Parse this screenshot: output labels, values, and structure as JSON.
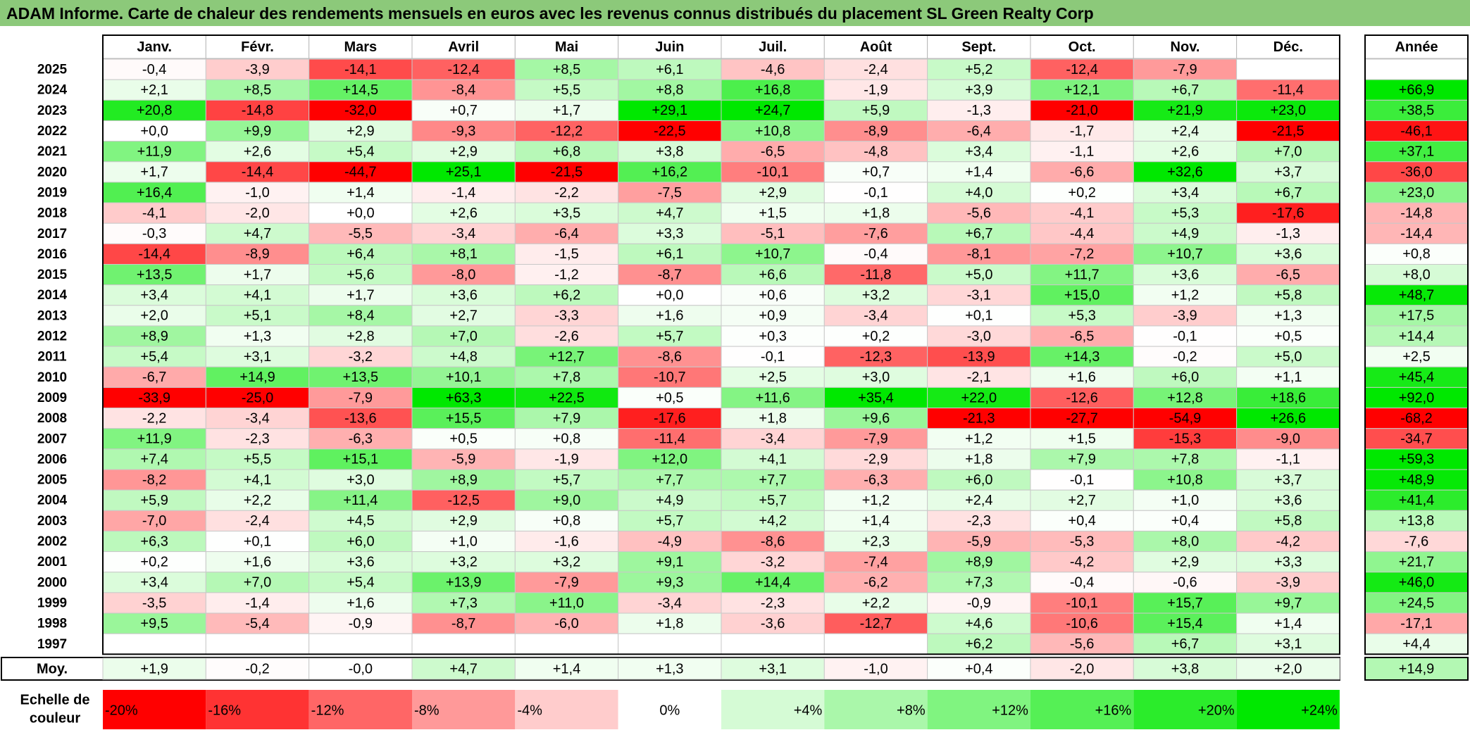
{
  "title": "ADAM Informe. Carte de chaleur des rendements mensuels en euros avec les revenus connus distribués du placement SL Green Realty Corp",
  "chart_data": {
    "type": "heatmap",
    "title": "ADAM Informe. Carte de chaleur des rendements mensuels en euros avec les revenus connus distribués du placement SL Green Realty Corp",
    "months": [
      "Janv.",
      "Févr.",
      "Mars",
      "Avril",
      "Mai",
      "Juin",
      "Juil.",
      "Août",
      "Sept.",
      "Oct.",
      "Nov.",
      "Déc."
    ],
    "year_header": "Année",
    "rows": [
      {
        "year": "2025",
        "values": [
          "-0,4",
          "-3,9",
          "-14,1",
          "-12,4",
          "+8,5",
          "+6,1",
          "-4,6",
          "-2,4",
          "+5,2",
          "-12,4",
          "-7,9",
          ""
        ],
        "annual": ""
      },
      {
        "year": "2024",
        "values": [
          "+2,1",
          "+8,5",
          "+14,5",
          "-8,4",
          "+5,5",
          "+8,8",
          "+16,8",
          "-1,9",
          "+3,9",
          "+12,1",
          "+6,7",
          "-11,4"
        ],
        "annual": "+66,9"
      },
      {
        "year": "2023",
        "values": [
          "+20,8",
          "-14,8",
          "-32,0",
          "+0,7",
          "+1,7",
          "+29,1",
          "+24,7",
          "+5,9",
          "-1,3",
          "-21,0",
          "+21,9",
          "+23,0"
        ],
        "annual": "+38,5"
      },
      {
        "year": "2022",
        "values": [
          "+0,0",
          "+9,9",
          "+2,9",
          "-9,3",
          "-12,2",
          "-22,5",
          "+10,8",
          "-8,9",
          "-6,4",
          "-1,7",
          "+2,4",
          "-21,5"
        ],
        "annual": "-46,1"
      },
      {
        "year": "2021",
        "values": [
          "+11,9",
          "+2,6",
          "+5,4",
          "+2,9",
          "+6,8",
          "+3,8",
          "-6,5",
          "-4,8",
          "+3,4",
          "-1,1",
          "+2,6",
          "+7,0"
        ],
        "annual": "+37,1"
      },
      {
        "year": "2020",
        "values": [
          "+1,7",
          "-14,4",
          "-44,7",
          "+25,1",
          "-21,5",
          "+16,2",
          "-10,1",
          "+0,7",
          "+1,4",
          "-6,6",
          "+32,6",
          "+3,7"
        ],
        "annual": "-36,0"
      },
      {
        "year": "2019",
        "values": [
          "+16,4",
          "-1,0",
          "+1,4",
          "-1,4",
          "-2,2",
          "-7,5",
          "+2,9",
          "-0,1",
          "+4,0",
          "+0,2",
          "+3,4",
          "+6,7"
        ],
        "annual": "+23,0"
      },
      {
        "year": "2018",
        "values": [
          "-4,1",
          "-2,0",
          "+0,0",
          "+2,6",
          "+3,5",
          "+4,7",
          "+1,5",
          "+1,8",
          "-5,6",
          "-4,1",
          "+5,3",
          "-17,6"
        ],
        "annual": "-14,8"
      },
      {
        "year": "2017",
        "values": [
          "-0,3",
          "+4,7",
          "-5,5",
          "-3,4",
          "-6,4",
          "+3,3",
          "-5,1",
          "-7,6",
          "+6,7",
          "-4,4",
          "+4,9",
          "-1,3"
        ],
        "annual": "-14,4"
      },
      {
        "year": "2016",
        "values": [
          "-14,4",
          "-8,9",
          "+6,4",
          "+8,1",
          "-1,5",
          "+6,1",
          "+10,7",
          "-0,4",
          "-8,1",
          "-7,2",
          "+10,7",
          "+3,6"
        ],
        "annual": "+0,8"
      },
      {
        "year": "2015",
        "values": [
          "+13,5",
          "+1,7",
          "+5,6",
          "-8,0",
          "-1,2",
          "-8,7",
          "+6,6",
          "-11,8",
          "+5,0",
          "+11,7",
          "+3,6",
          "-6,5"
        ],
        "annual": "+8,0"
      },
      {
        "year": "2014",
        "values": [
          "+3,4",
          "+4,1",
          "+1,7",
          "+3,6",
          "+6,2",
          "+0,0",
          "+0,6",
          "+3,2",
          "-3,1",
          "+15,0",
          "+1,2",
          "+5,8"
        ],
        "annual": "+48,7"
      },
      {
        "year": "2013",
        "values": [
          "+2,0",
          "+5,1",
          "+8,4",
          "+2,7",
          "-3,3",
          "+1,6",
          "+0,9",
          "-3,4",
          "+0,1",
          "+5,3",
          "-3,9",
          "+1,3"
        ],
        "annual": "+17,5"
      },
      {
        "year": "2012",
        "values": [
          "+8,9",
          "+1,3",
          "+2,8",
          "+7,0",
          "-2,6",
          "+5,7",
          "+0,3",
          "+0,2",
          "-3,0",
          "-6,5",
          "-0,1",
          "+0,5"
        ],
        "annual": "+14,4"
      },
      {
        "year": "2011",
        "values": [
          "+5,4",
          "+3,1",
          "-3,2",
          "+4,8",
          "+12,7",
          "-8,6",
          "-0,1",
          "-12,3",
          "-13,9",
          "+14,3",
          "-0,2",
          "+5,0"
        ],
        "annual": "+2,5"
      },
      {
        "year": "2010",
        "values": [
          "-6,7",
          "+14,9",
          "+13,5",
          "+10,1",
          "+7,8",
          "-10,7",
          "+2,5",
          "+3,0",
          "-2,1",
          "+1,6",
          "+6,0",
          "+1,1"
        ],
        "annual": "+45,4"
      },
      {
        "year": "2009",
        "values": [
          "-33,9",
          "-25,0",
          "-7,9",
          "+63,3",
          "+22,5",
          "+0,5",
          "+11,6",
          "+35,4",
          "+22,0",
          "-12,6",
          "+12,8",
          "+18,6"
        ],
        "annual": "+92,0"
      },
      {
        "year": "2008",
        "values": [
          "-2,2",
          "-3,4",
          "-13,6",
          "+15,5",
          "+7,9",
          "-17,6",
          "+1,8",
          "+9,6",
          "-21,3",
          "-27,7",
          "-54,9",
          "+26,6"
        ],
        "annual": "-68,2"
      },
      {
        "year": "2007",
        "values": [
          "+11,9",
          "-2,3",
          "-6,3",
          "+0,5",
          "+0,8",
          "-11,4",
          "-3,4",
          "-7,9",
          "+1,2",
          "+1,5",
          "-15,3",
          "-9,0"
        ],
        "annual": "-34,7"
      },
      {
        "year": "2006",
        "values": [
          "+7,4",
          "+5,5",
          "+15,1",
          "-5,9",
          "-1,9",
          "+12,0",
          "+4,1",
          "-2,9",
          "+1,8",
          "+7,9",
          "+7,8",
          "-1,1"
        ],
        "annual": "+59,3"
      },
      {
        "year": "2005",
        "values": [
          "-8,2",
          "+4,1",
          "+3,0",
          "+8,9",
          "+5,7",
          "+7,7",
          "+7,7",
          "-6,3",
          "+6,0",
          "-0,1",
          "+10,8",
          "+3,7"
        ],
        "annual": "+48,9"
      },
      {
        "year": "2004",
        "values": [
          "+5,9",
          "+2,2",
          "+11,4",
          "-12,5",
          "+9,0",
          "+4,9",
          "+5,7",
          "+1,2",
          "+2,4",
          "+2,7",
          "+1,0",
          "+3,6"
        ],
        "annual": "+41,4"
      },
      {
        "year": "2003",
        "values": [
          "-7,0",
          "-2,4",
          "+4,5",
          "+2,9",
          "+0,8",
          "+5,7",
          "+4,2",
          "+1,4",
          "-2,3",
          "+0,4",
          "+0,4",
          "+5,8"
        ],
        "annual": "+13,8"
      },
      {
        "year": "2002",
        "values": [
          "+6,3",
          "+0,1",
          "+6,0",
          "+1,0",
          "-1,6",
          "-4,9",
          "-8,6",
          "+2,3",
          "-5,9",
          "-5,3",
          "+8,0",
          "-4,2"
        ],
        "annual": "-7,6"
      },
      {
        "year": "2001",
        "values": [
          "+0,2",
          "+1,6",
          "+3,6",
          "+3,2",
          "+3,2",
          "+9,1",
          "-3,2",
          "-7,4",
          "+8,9",
          "-4,2",
          "+2,9",
          "+3,3"
        ],
        "annual": "+21,7"
      },
      {
        "year": "2000",
        "values": [
          "+3,4",
          "+7,0",
          "+5,4",
          "+13,9",
          "-7,9",
          "+9,3",
          "+14,4",
          "-6,2",
          "+7,3",
          "-0,4",
          "-0,6",
          "-3,9"
        ],
        "annual": "+46,0"
      },
      {
        "year": "1999",
        "values": [
          "-3,5",
          "-1,4",
          "+1,6",
          "+7,3",
          "+11,0",
          "-3,4",
          "-2,3",
          "+2,2",
          "-0,9",
          "-10,1",
          "+15,7",
          "+9,7"
        ],
        "annual": "+24,5"
      },
      {
        "year": "1998",
        "values": [
          "+9,5",
          "-5,4",
          "-0,9",
          "-8,7",
          "-6,0",
          "+1,8",
          "-3,6",
          "-12,7",
          "+4,6",
          "-10,6",
          "+15,4",
          "+1,4"
        ],
        "annual": "-17,1"
      },
      {
        "year": "1997",
        "values": [
          "",
          "",
          "",
          "",
          "",
          "",
          "",
          "",
          "+6,2",
          "-5,6",
          "+6,7",
          "+3,1"
        ],
        "annual": "+4,4"
      }
    ],
    "average": {
      "label": "Moy.",
      "values": [
        "+1,9",
        "-0,2",
        "-0,0",
        "+4,7",
        "+1,4",
        "+1,3",
        "+3,1",
        "-1,0",
        "+0,4",
        "-2,0",
        "+3,8",
        "+2,0"
      ],
      "annual": "+14,9"
    },
    "scale": {
      "label_line1": "Echelle de",
      "label_line2": "couleur",
      "stops": [
        {
          "label": "-20%",
          "value": -20
        },
        {
          "label": "-16%",
          "value": -16
        },
        {
          "label": "-12%",
          "value": -12
        },
        {
          "label": "-8%",
          "value": -8
        },
        {
          "label": "-4%",
          "value": -4
        },
        {
          "label": "0%",
          "value": 0
        },
        {
          "label": "+4%",
          "value": 4
        },
        {
          "label": "+8%",
          "value": 8
        },
        {
          "label": "+12%",
          "value": 12
        },
        {
          "label": "+16%",
          "value": 16
        },
        {
          "label": "+20%",
          "value": 20
        },
        {
          "label": "+24%",
          "value": 24
        }
      ]
    },
    "colors": {
      "negative": "#ff0000",
      "neutral": "#ffffff",
      "positive": "#00e800",
      "title_bar": "#8cc97a"
    }
  }
}
